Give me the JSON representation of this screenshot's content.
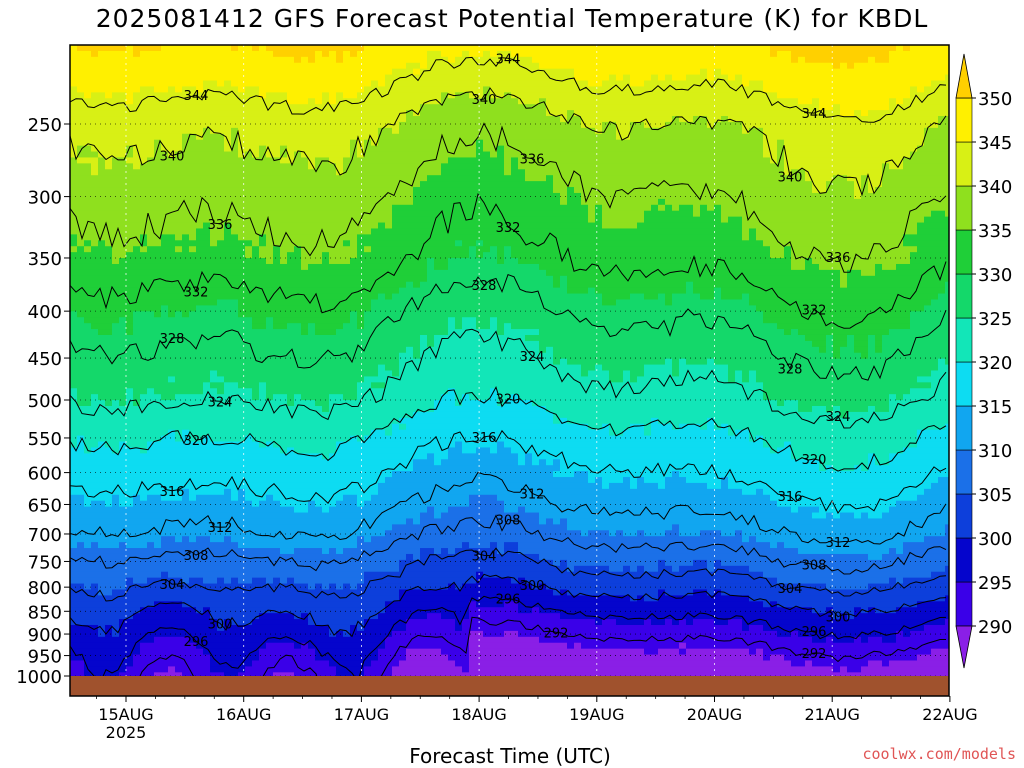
{
  "title": "2025081412 GFS Forecast Potential Temperature (K) for KBDL",
  "credit": "coolwx.com/models",
  "chart_data": {
    "type": "heatmap",
    "title": "2025081412 GFS Forecast Potential Temperature (K) for KBDL",
    "xlabel": "Forecast Time (UTC)",
    "ylabel": "",
    "x_ticks": [
      "15AUG",
      "16AUG",
      "17AUG",
      "18AUG",
      "19AUG",
      "20AUG",
      "21AUG",
      "22AUG"
    ],
    "x_tick_sublabel": "2025",
    "y_ticks": [
      250,
      300,
      350,
      400,
      450,
      500,
      550,
      600,
      650,
      700,
      750,
      800,
      850,
      900,
      950,
      1000
    ],
    "y_scale": "log (pressure, hPa)",
    "colorbar": {
      "ticks": [
        290,
        295,
        300,
        305,
        310,
        315,
        320,
        325,
        330,
        335,
        340,
        345,
        350
      ],
      "colors": [
        "#8a1fe6",
        "#3a00e8",
        "#0505cc",
        "#0d3fdb",
        "#1b70e8",
        "#11a6f0",
        "#0ddcf2",
        "#12e6b8",
        "#14d86a",
        "#1fcf38",
        "#8fe01e",
        "#d8f015",
        "#fff000",
        "#ffd000"
      ]
    },
    "contour_levels": [
      292,
      296,
      300,
      304,
      308,
      312,
      316,
      320,
      324,
      328,
      332,
      336,
      340,
      344
    ],
    "contour_labels": [
      {
        "text": "344",
        "level": 344
      },
      {
        "text": "340",
        "level": 340
      },
      {
        "text": "336",
        "level": 336
      },
      {
        "text": "332",
        "level": 332
      },
      {
        "text": "328",
        "level": 328
      },
      {
        "text": "324",
        "level": 324
      },
      {
        "text": "320",
        "level": 320
      },
      {
        "text": "316",
        "level": 316
      },
      {
        "text": "312",
        "level": 312
      },
      {
        "text": "308",
        "level": 308
      },
      {
        "text": "304",
        "level": 304
      },
      {
        "text": "300",
        "level": 300
      },
      {
        "text": "296",
        "level": 296
      },
      {
        "text": "292",
        "level": 292
      }
    ],
    "ground_color": "#a0522d",
    "grid": true
  }
}
